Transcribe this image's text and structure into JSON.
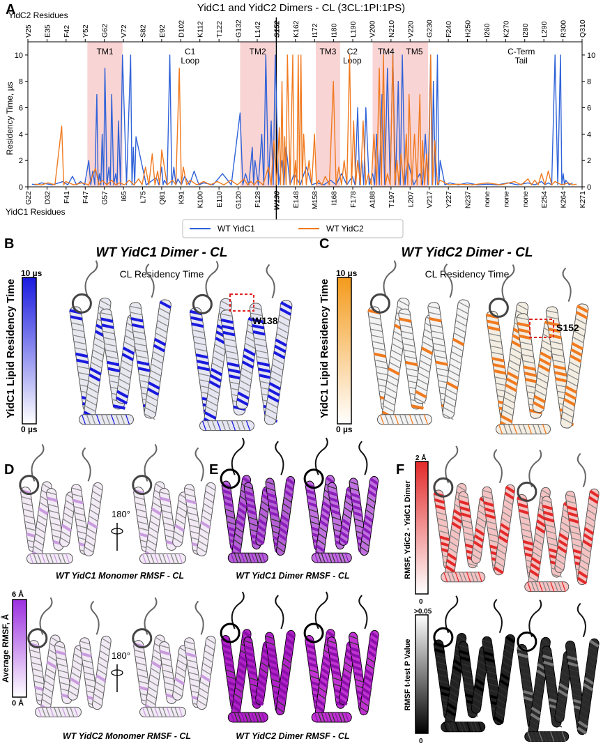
{
  "panels": {
    "A": {
      "label": "A",
      "title": "YidC1 and YidC2 Dimers - CL (3CL:1PI:1PS)",
      "top_axis_label": "YidC2 Residues",
      "bottom_axis_label": "YidC1 Residues",
      "ylabel": "Residency Time, µs",
      "top_ticks": [
        "V25",
        "E35",
        "F42",
        "Y52",
        "G62",
        "V72",
        "S82",
        "E92",
        "D102",
        "K112",
        "T122",
        "G132",
        "L142",
        "S152",
        "K162",
        "I172",
        "I180",
        "L190",
        "V200",
        "N210",
        "V220",
        "G230",
        "F240",
        "H250",
        "I260",
        "K270",
        "I280",
        "L290",
        "R300",
        "Q310"
      ],
      "bottom_ticks": [
        "G22",
        "D32",
        "F41",
        "F47",
        "G57",
        "I65",
        "L75",
        "Q81",
        "K91",
        "K100",
        "E110",
        "G120",
        "F128",
        "W138",
        "E148",
        "M158",
        "I168",
        "F178",
        "A188",
        "T197",
        "L207",
        "V217",
        "Y227",
        "N237",
        "none",
        "none",
        "none",
        "E254",
        "K264",
        "K271"
      ],
      "y_ticks": [
        "0",
        "2",
        "4",
        "6",
        "8",
        "10"
      ],
      "regions": [
        {
          "name": "TM1",
          "shaded": true
        },
        {
          "name": "C1\nLoop",
          "shaded": false
        },
        {
          "name": "TM2",
          "shaded": true
        },
        {
          "name": "TM3",
          "shaded": true
        },
        {
          "name": "C2\nLoop",
          "shaded": false
        },
        {
          "name": "TM4",
          "shaded": true
        },
        {
          "name": "TM5",
          "shaded": true
        },
        {
          "name": "C-Term\nTail",
          "shaded": false
        }
      ],
      "legend": [
        {
          "name": "WT YidC1",
          "color": "#2f62d8"
        },
        {
          "name": "WT YidC2",
          "color": "#f07a1f"
        }
      ]
    },
    "B": {
      "label": "B",
      "title": "WT YidC1 Dimer - CL",
      "subtitle": "CL Residency Time",
      "annotation": "W138",
      "cb_title": "YidC1 Lipid Residency Time",
      "cb_max": "10 µs",
      "cb_min": "0 µs",
      "cb_color": "#1a1adf"
    },
    "C": {
      "label": "C",
      "title": "WT YidC2 Dimer - CL",
      "subtitle": "CL Residency Time",
      "annotation": "S152",
      "cb_title": "YidC1 Lipid Residency Time",
      "cb_max": "10 µs",
      "cb_min": "0 µs",
      "cb_color": "#f49b1c"
    },
    "D": {
      "label": "D",
      "top_caption": "WT YidC1 Monomer RMSF - CL",
      "bottom_caption": "WT YidC2 Monomer RMSF - CL",
      "rotate_top": "180°",
      "rotate_bottom": "180°",
      "cb_title": "Average RMSF, Å",
      "cb_max": "6 Å",
      "cb_min": "0 Å",
      "cb_color": "#9b30e0"
    },
    "E": {
      "label": "E",
      "top_caption": "WT YidC1 Dimer RMSF - CL",
      "bottom_caption": "WT YidC2 Dimer RMSF - CL"
    },
    "F": {
      "label": "F",
      "cb1_title": "RMSF, YdiC2 - YidC1 Dimer",
      "cb1_max": "2 Å",
      "cb1_min": "0",
      "cb1_color": "#e32a2a",
      "cb2_title": "RMSF t-test P Value",
      "cb2_max": ">0.05",
      "cb2_min": "0"
    }
  },
  "chart_data": {
    "type": "line",
    "title": "YidC1 and YidC2 Dimers - CL (3CL:1PI:1PS)",
    "xlabel": "YidC1 Residues",
    "x2label": "YidC2 Residues",
    "ylabel": "Residency Time, µs",
    "ylim": [
      0,
      11
    ],
    "series": [
      {
        "name": "WT YidC1",
        "color": "#2f62d8",
        "peaks": [
          [
            3,
            0.2
          ],
          [
            10,
            0.3
          ],
          [
            26,
            0.4
          ],
          [
            33,
            0.8
          ],
          [
            39,
            0.4
          ],
          [
            45,
            2
          ],
          [
            48,
            1.2
          ],
          [
            51,
            7
          ],
          [
            53,
            1
          ],
          [
            55,
            4
          ],
          [
            57,
            9
          ],
          [
            60,
            1.5
          ],
          [
            62,
            7
          ],
          [
            65,
            1
          ],
          [
            67,
            5
          ],
          [
            70,
            10
          ],
          [
            76,
            10
          ],
          [
            78,
            3
          ],
          [
            80,
            3.8
          ],
          [
            95,
            0.7
          ],
          [
            99,
            1.5
          ],
          [
            101,
            0.5
          ],
          [
            105,
            10
          ],
          [
            108,
            1.5
          ],
          [
            111,
            0.6
          ],
          [
            116,
            0.8
          ],
          [
            123,
            1.2
          ],
          [
            130,
            0.3
          ],
          [
            144,
            1
          ],
          [
            157,
            5.6
          ],
          [
            161,
            1
          ],
          [
            166,
            3
          ],
          [
            168,
            2
          ],
          [
            173,
            4
          ],
          [
            176,
            10
          ],
          [
            180,
            5
          ],
          [
            183,
            10
          ],
          [
            188,
            2
          ],
          [
            191,
            3
          ],
          [
            197,
            1
          ],
          [
            206,
            1.5
          ],
          [
            214,
            0.3
          ],
          [
            224,
            0.5
          ],
          [
            232,
            1
          ],
          [
            240,
            0.8
          ],
          [
            244,
            6
          ],
          [
            247,
            2
          ],
          [
            250,
            6
          ],
          [
            255,
            1
          ],
          [
            258,
            4
          ],
          [
            262,
            7
          ],
          [
            266,
            9
          ],
          [
            270,
            10
          ],
          [
            274,
            8
          ],
          [
            277,
            10
          ],
          [
            281,
            2
          ],
          [
            290,
            1
          ],
          [
            294,
            4
          ],
          [
            298,
            10
          ],
          [
            300,
            8
          ],
          [
            303,
            10
          ],
          [
            305,
            2
          ],
          [
            312,
            0.3
          ],
          [
            325,
            0.3
          ],
          [
            340,
            0.2
          ],
          [
            355,
            0.3
          ],
          [
            370,
            0.3
          ],
          [
            380,
            0.4
          ],
          [
            385,
            0.3
          ],
          [
            390,
            10
          ],
          [
            394,
            10
          ],
          [
            396,
            1
          ],
          [
            398,
            0.5
          ],
          [
            403,
            0.3
          ]
        ]
      },
      {
        "name": "WT YidC2",
        "color": "#f07a1f",
        "peaks": [
          [
            5,
            0.2
          ],
          [
            15,
            0.3
          ],
          [
            25,
            4.6
          ],
          [
            28,
            0.4
          ],
          [
            40,
            0.3
          ],
          [
            50,
            1.4
          ],
          [
            55,
            0.5
          ],
          [
            62,
            0.5
          ],
          [
            68,
            0.3
          ],
          [
            75,
            0.5
          ],
          [
            82,
            0.6
          ],
          [
            87,
            1.5
          ],
          [
            92,
            2.5
          ],
          [
            96,
            1.2
          ],
          [
            99,
            2.8
          ],
          [
            107,
            0.5
          ],
          [
            112,
            9
          ],
          [
            115,
            1.5
          ],
          [
            120,
            0.5
          ],
          [
            130,
            0.4
          ],
          [
            140,
            0.4
          ],
          [
            150,
            0.5
          ],
          [
            160,
            0.6
          ],
          [
            165,
            0.4
          ],
          [
            170,
            0.5
          ],
          [
            178,
            1.5
          ],
          [
            182,
            3.5
          ],
          [
            186,
            4.5
          ],
          [
            188,
            8
          ],
          [
            190,
            3.8
          ],
          [
            192,
            10
          ],
          [
            196,
            10
          ],
          [
            198,
            2
          ],
          [
            200,
            10
          ],
          [
            202,
            10
          ],
          [
            204,
            4
          ],
          [
            208,
            2
          ],
          [
            212,
            4
          ],
          [
            215,
            0.5
          ],
          [
            220,
            0.8
          ],
          [
            226,
            8
          ],
          [
            230,
            1.5
          ],
          [
            234,
            2
          ],
          [
            238,
            10
          ],
          [
            241,
            5
          ],
          [
            244,
            2
          ],
          [
            248,
            5
          ],
          [
            252,
            1
          ],
          [
            256,
            4
          ],
          [
            260,
            9
          ],
          [
            263,
            10
          ],
          [
            266,
            1
          ],
          [
            270,
            10
          ],
          [
            273,
            2
          ],
          [
            276,
            2.5
          ],
          [
            280,
            4
          ],
          [
            282,
            7
          ],
          [
            286,
            4
          ],
          [
            290,
            7
          ],
          [
            292,
            3.5
          ],
          [
            295,
            2.5
          ],
          [
            298,
            10
          ],
          [
            301,
            3.5
          ],
          [
            305,
            0.5
          ],
          [
            318,
            0.2
          ],
          [
            340,
            0.3
          ],
          [
            360,
            0.4
          ],
          [
            370,
            0.6
          ],
          [
            375,
            0.5
          ],
          [
            380,
            1
          ],
          [
            385,
            1.2
          ],
          [
            390,
            0.4
          ],
          [
            400,
            0.3
          ],
          [
            406,
            0.2
          ]
        ]
      }
    ],
    "regions": [
      {
        "name": "TM1",
        "x": [
          44,
          70
        ]
      },
      {
        "name": "TM2",
        "x": [
          157,
          183
        ]
      },
      {
        "name": "TM3",
        "x": [
          213,
          231
        ]
      },
      {
        "name": "TM4",
        "x": [
          255,
          276
        ]
      },
      {
        "name": "TM5",
        "x": [
          276,
          296
        ]
      }
    ]
  }
}
